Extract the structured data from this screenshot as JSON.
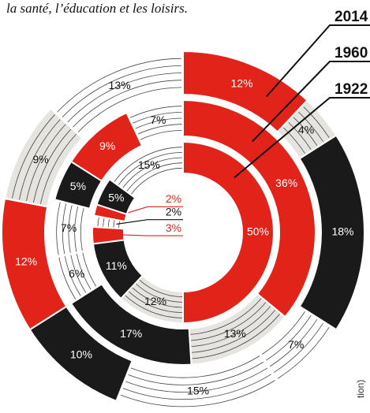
{
  "chart_data": {
    "type": "donut",
    "title": "la santé, l’éducation et les loisirs.",
    "note": "tion)",
    "series": [
      {
        "name": "2014",
        "values": [
          12,
          4,
          18,
          7,
          15,
          10,
          12,
          9,
          13
        ],
        "value_labels": [
          "12%",
          "4%",
          "18%",
          "7%",
          "15%",
          "10%",
          "12%",
          "9%",
          "13%"
        ],
        "colors": [
          "#e2231a",
          "#e6e4df",
          "#1a1a1a",
          "#ffffff",
          "#ffffff",
          "#1a1a1a",
          "#e2231a",
          "#e6e4df",
          "#ffffff"
        ]
      },
      {
        "name": "1960",
        "values": [
          36,
          13,
          17,
          6,
          7,
          5,
          9,
          7
        ],
        "value_labels": [
          "36%",
          "13%",
          "17%",
          "6%",
          "7%",
          "5%",
          "9%",
          "7%"
        ],
        "colors": [
          "#e2231a",
          "#e6e4df",
          "#1a1a1a",
          "#ffffff",
          "#ffffff",
          "#1a1a1a",
          "#e2231a",
          "#ffffff"
        ]
      },
      {
        "name": "1922",
        "values": [
          50,
          12,
          11,
          3,
          2,
          2,
          5,
          15
        ],
        "value_labels": [
          "50%",
          "12%",
          "11%",
          "3%",
          "2%",
          "2%",
          "5%",
          "15%"
        ],
        "colors": [
          "#e2231a",
          "#e6e4df",
          "#1a1a1a",
          "#e2231a",
          "#ffffff",
          "#e2231a",
          "#1a1a1a",
          "#ffffff"
        ]
      }
    ]
  }
}
